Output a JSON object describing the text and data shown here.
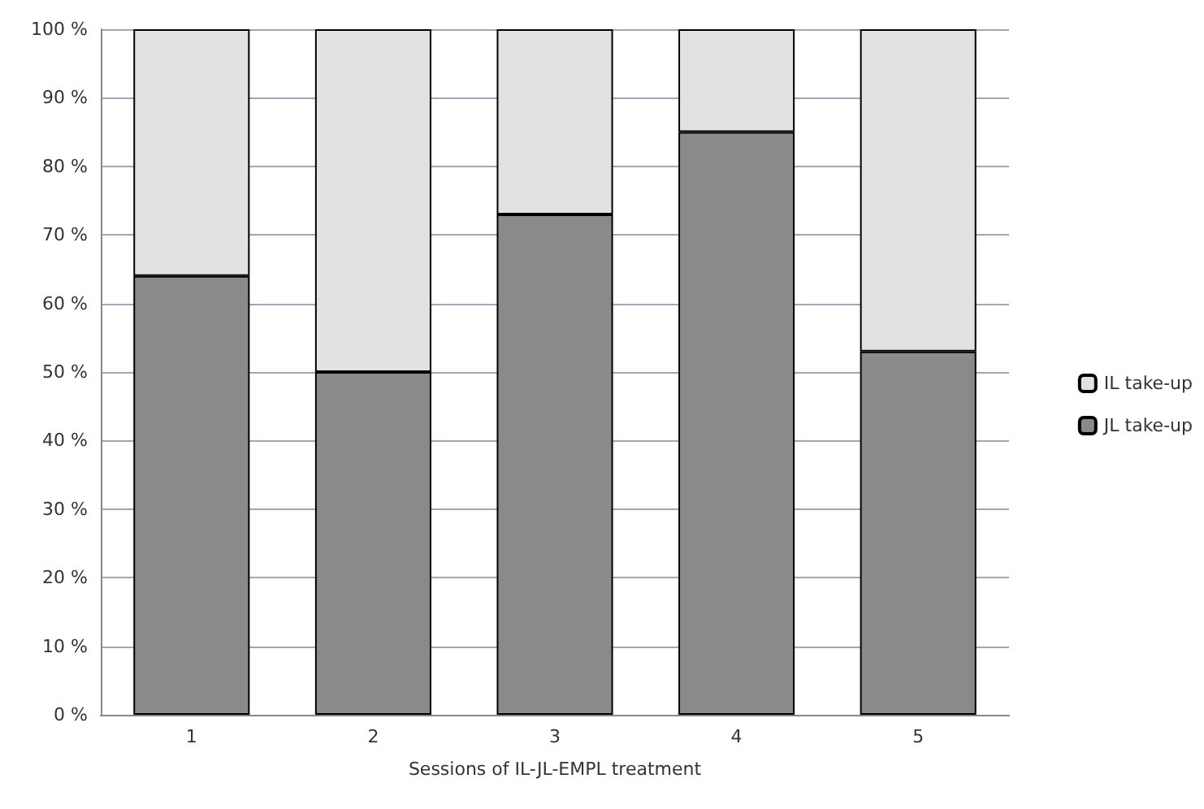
{
  "chart_data": {
    "type": "bar",
    "xlabel": "Sessions of IL-JL-EMPL treatment",
    "categories": [
      "1",
      "2",
      "3",
      "4",
      "5"
    ],
    "stacked": true,
    "series": [
      {
        "name": "JL take-up",
        "color": "#8a8a8a",
        "values": [
          64,
          50,
          73,
          85,
          53
        ]
      },
      {
        "name": "IL take-up",
        "color": "#e2e2e2",
        "values": [
          36,
          50,
          27,
          15,
          47
        ]
      }
    ],
    "ylim": [
      0,
      100
    ],
    "yticks": [
      {
        "value": 0,
        "label": "0 %"
      },
      {
        "value": 10,
        "label": "10 %"
      },
      {
        "value": 20,
        "label": "20 %"
      },
      {
        "value": 30,
        "label": "30 %"
      },
      {
        "value": 40,
        "label": "40 %"
      },
      {
        "value": 50,
        "label": "50 %"
      },
      {
        "value": 60,
        "label": "60 %"
      },
      {
        "value": 70,
        "label": "70 %"
      },
      {
        "value": 80,
        "label": "80 %"
      },
      {
        "value": 90,
        "label": "90 %"
      },
      {
        "value": 100,
        "label": "100 %"
      }
    ],
    "grid": "y",
    "legend": "right"
  }
}
